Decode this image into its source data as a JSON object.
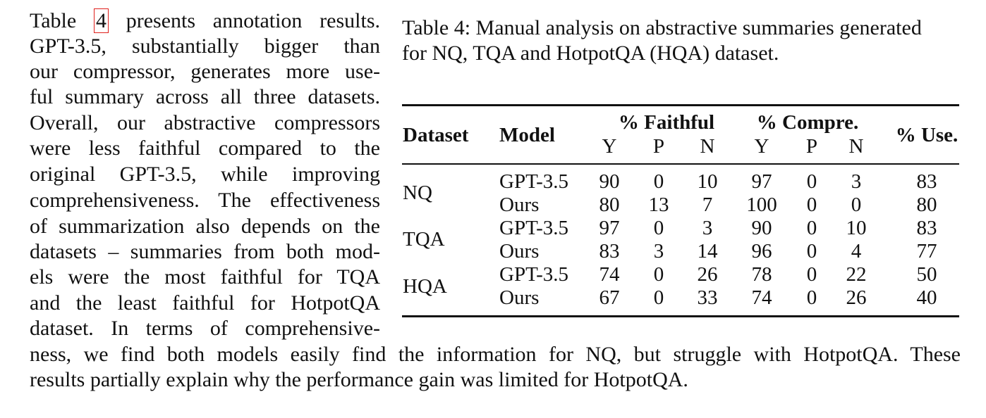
{
  "paragraph": {
    "lines": [
      "presents annotation results.",
      "GPT-3.5, substantially bigger than",
      "our compressor, generates more use-",
      "ful summary across all three datasets.",
      "Overall, our abstractive compressors",
      "were less faithful compared to the",
      "original GPT-3.5, while improving",
      "comprehensiveness. The effectiveness",
      "of summarization also depends on the",
      "datasets – summaries from both mod-",
      "els were the most faithful for TQA",
      "and the least faithful for HotpotQA",
      "dataset. In terms of comprehensive-",
      "ness, we find both models easily find the information for NQ, but struggle with HotpotQA. These",
      "results partially explain why the performance gain was limited for HotpotQA."
    ],
    "table_word": "Table",
    "table_ref": "4"
  },
  "caption": {
    "line1": "Table 4: Manual analysis on abstractive summaries generated",
    "line2": "for NQ, TQA and HotpotQA (HQA) dataset."
  },
  "table": {
    "headers": {
      "dataset": "Dataset",
      "model": "Model",
      "faithful": "% Faithful",
      "compre": "% Compre.",
      "use": "% Use.",
      "sub": [
        "Y",
        "P",
        "N",
        "Y",
        "P",
        "N"
      ]
    },
    "groups": [
      {
        "dataset": "NQ",
        "rows": [
          {
            "model": "GPT-3.5",
            "values": [
              "90",
              "0",
              "10",
              "97",
              "0",
              "3",
              "83"
            ]
          },
          {
            "model": "Ours",
            "values": [
              "80",
              "13",
              "7",
              "100",
              "0",
              "0",
              "80"
            ]
          }
        ]
      },
      {
        "dataset": "TQA",
        "rows": [
          {
            "model": "GPT-3.5",
            "values": [
              "97",
              "0",
              "3",
              "90",
              "0",
              "10",
              "83"
            ]
          },
          {
            "model": "Ours",
            "values": [
              "83",
              "3",
              "14",
              "96",
              "0",
              "4",
              "77"
            ]
          }
        ]
      },
      {
        "dataset": "HQA",
        "rows": [
          {
            "model": "GPT-3.5",
            "values": [
              "74",
              "0",
              "26",
              "78",
              "0",
              "22",
              "50"
            ]
          },
          {
            "model": "Ours",
            "values": [
              "67",
              "0",
              "33",
              "74",
              "0",
              "26",
              "40"
            ]
          }
        ]
      }
    ]
  }
}
